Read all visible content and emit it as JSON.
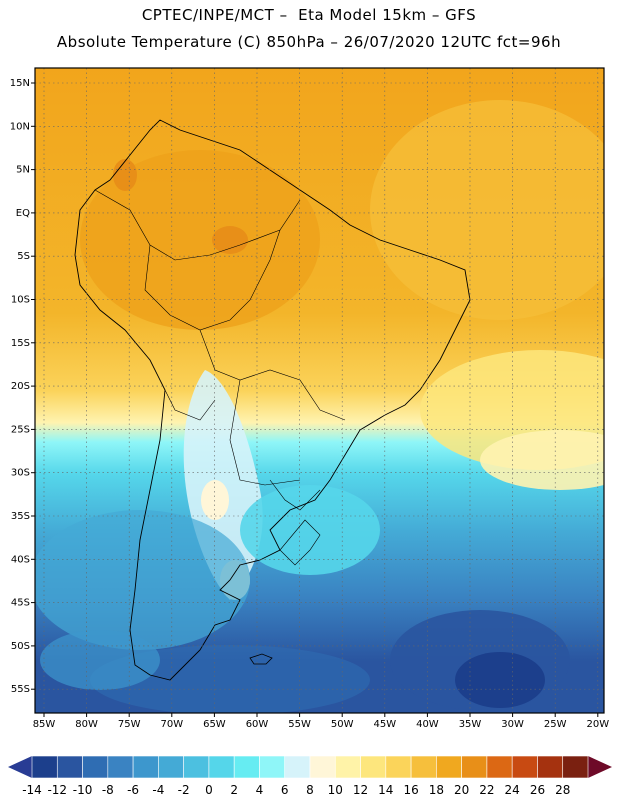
{
  "header": {
    "line1": "CPTEC/INPE/MCT –  Eta Model 15km – GFS",
    "line2": "Absolute Temperature (C) 850hPa – 26/07/2020 12UTC fct=96h"
  },
  "map": {
    "lat_labels": [
      "15N",
      "10N",
      "5N",
      "EQ",
      "5S",
      "10S",
      "15S",
      "20S",
      "25S",
      "30S",
      "35S",
      "40S",
      "45S",
      "50S",
      "55S"
    ],
    "lon_labels": [
      "85W",
      "80W",
      "75W",
      "70W",
      "65W",
      "60W",
      "55W",
      "50W",
      "45W",
      "40W",
      "35W",
      "30W",
      "25W",
      "20W"
    ]
  },
  "colorbar": {
    "tick_labels": [
      "-14",
      "-12",
      "-10",
      "-8",
      "-6",
      "-4",
      "-2",
      "0",
      "2",
      "4",
      "6",
      "8",
      "10",
      "12",
      "14",
      "16",
      "18",
      "20",
      "22",
      "24",
      "26",
      "28"
    ],
    "colors": [
      "#1c3f8c",
      "#2a55a0",
      "#2f6db3",
      "#3a83c2",
      "#3d97cd",
      "#44aad6",
      "#4cc0e0",
      "#55d6ea",
      "#66ecf2",
      "#8ff6f8",
      "#d6f3fa",
      "#fff6d8",
      "#fff3a8",
      "#fde67d",
      "#fbd45a",
      "#f6bf3c",
      "#f0a81f",
      "#e88f18",
      "#dc6814",
      "#c84a12",
      "#a5320f",
      "#7a2010"
    ],
    "under_color": "#283c94",
    "over_color": "#6e0a28"
  }
}
